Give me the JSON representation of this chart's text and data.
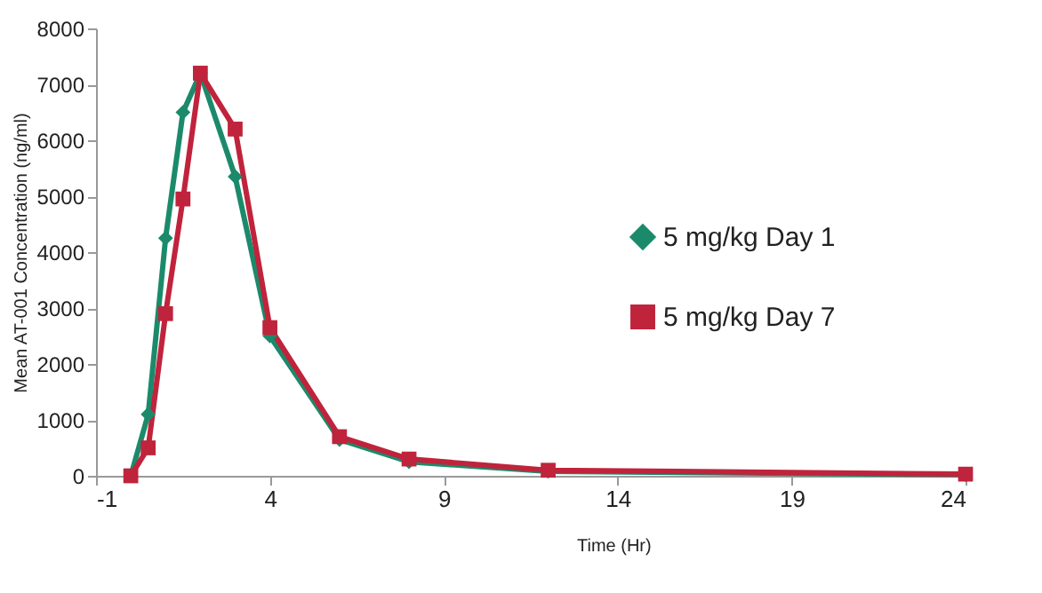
{
  "chart_data": {
    "type": "line",
    "xlabel": "Time (Hr)",
    "ylabel": "Mean AT-001 Concentration (ng/ml)",
    "x": [
      0,
      0.5,
      1,
      1.5,
      2,
      3,
      4,
      6,
      8,
      12,
      24
    ],
    "series": [
      {
        "name": "5 mg/kg Day 1",
        "color": "#1b8a6b",
        "marker": "diamond",
        "values": [
          0,
          1100,
          4250,
          6500,
          7200,
          5350,
          2500,
          650,
          250,
          80,
          20
        ]
      },
      {
        "name": "5 mg/kg Day 7",
        "color": "#c0233c",
        "marker": "square",
        "values": [
          0,
          500,
          2900,
          4950,
          7200,
          6200,
          2650,
          700,
          300,
          100,
          30
        ]
      }
    ],
    "xlim": [
      -1,
      24
    ],
    "xticks": [
      -1,
      4,
      9,
      14,
      19,
      24
    ],
    "ylim": [
      0,
      8000
    ],
    "yticks": [
      0,
      1000,
      2000,
      3000,
      4000,
      5000,
      6000,
      7000,
      8000
    ],
    "grid": false,
    "legend": "right",
    "line_style": "solid"
  }
}
